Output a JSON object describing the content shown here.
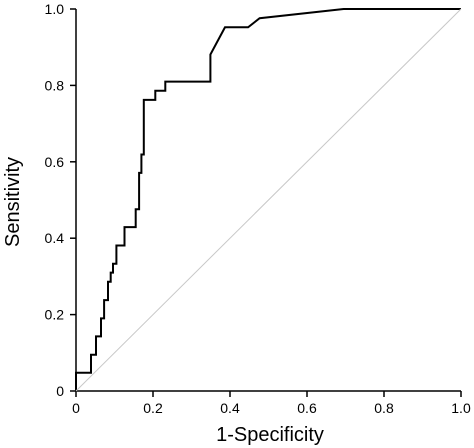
{
  "chart_data": {
    "type": "line",
    "title": "",
    "xlabel": "1-Specificity",
    "ylabel": "Sensitivity",
    "xlim": [
      0,
      1.0
    ],
    "ylim": [
      0,
      1.0
    ],
    "x_ticks": [
      "0",
      "0.2",
      "0.4",
      "0.6",
      "0.8",
      "1.0"
    ],
    "y_ticks": [
      "0",
      "0.2",
      "0.4",
      "0.6",
      "0.8",
      "1.0"
    ],
    "grid": false,
    "legend": "none",
    "series": [
      {
        "type": "step",
        "color": "#000000",
        "x": [
          0,
          0,
          0.039,
          0.039,
          0.052,
          0.052,
          0.065,
          0.065,
          0.073,
          0.073,
          0.083,
          0.083,
          0.09,
          0.09,
          0.096,
          0.096,
          0.105,
          0.105,
          0.126,
          0.126,
          0.155,
          0.155,
          0.164,
          0.164,
          0.17,
          0.17,
          0.176,
          0.176,
          0.198,
          0.198,
          0.206,
          0.206,
          0.232,
          0.232,
          0.269,
          0.269,
          0.349,
          0.349,
          0.387,
          0.421,
          0.447,
          0.477,
          0.695,
          1.0
        ],
        "y": [
          0,
          0.048,
          0.048,
          0.095,
          0.095,
          0.143,
          0.143,
          0.19,
          0.19,
          0.238,
          0.238,
          0.286,
          0.286,
          0.31,
          0.31,
          0.333,
          0.333,
          0.381,
          0.381,
          0.429,
          0.429,
          0.476,
          0.476,
          0.571,
          0.571,
          0.619,
          0.619,
          0.762,
          0.762,
          0.762,
          0.762,
          0.786,
          0.786,
          0.81,
          0.81,
          0.81,
          0.81,
          0.881,
          0.952,
          0.952,
          0.952,
          0.976,
          1.0,
          1.0
        ]
      },
      {
        "type": "reference",
        "color": "#c8c8c8",
        "x": [
          0,
          1.0
        ],
        "y": [
          0,
          1.0
        ]
      }
    ]
  }
}
